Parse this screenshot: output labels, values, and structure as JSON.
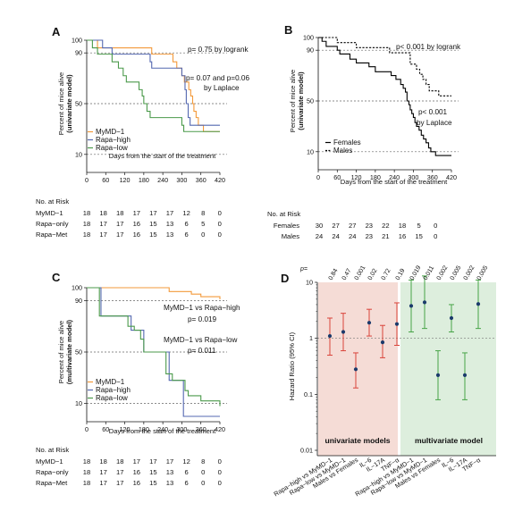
{
  "panels": {
    "A": {
      "letter": "A",
      "ylabel": "Percent of mice alive",
      "ylabel_sub": "(univariate model)",
      "xlabel": "Days from the start of the treatment",
      "annotations": [
        "p= 0.75 by logrank",
        "p= 0.07 and p=0.06",
        "by Laplace"
      ],
      "legend": [
        "MyMD−1",
        "Rapa−high",
        "Rapa−low"
      ],
      "risk_title": "No. at Risk",
      "risk_rows": [
        {
          "label": "MyMD−1",
          "counts": [
            "18",
            "18",
            "18",
            "17",
            "17",
            "17",
            "12",
            "8",
            "0"
          ]
        },
        {
          "label": "Rapa−only",
          "counts": [
            "18",
            "17",
            "17",
            "16",
            "15",
            "13",
            "6",
            "5",
            "0"
          ]
        },
        {
          "label": "Rapa−Met",
          "counts": [
            "18",
            "17",
            "17",
            "16",
            "15",
            "13",
            "6",
            "0",
            "0"
          ]
        }
      ]
    },
    "B": {
      "letter": "B",
      "ylabel": "Percent of mice alive",
      "ylabel_sub": "(univariate model)",
      "xlabel": "Days from the start of the treatment",
      "annotations": [
        "p< 0.001 by logrank",
        "p< 0.001",
        "by Laplace"
      ],
      "legend": [
        "Females",
        "Males"
      ],
      "risk_title": "No. at Risk",
      "risk_rows": [
        {
          "label": "Females",
          "counts": [
            "30",
            "27",
            "27",
            "23",
            "22",
            "18",
            "5",
            "0",
            ""
          ]
        },
        {
          "label": "Males",
          "counts": [
            "24",
            "24",
            "24",
            "23",
            "21",
            "16",
            "15",
            "0",
            ""
          ]
        }
      ]
    },
    "C": {
      "letter": "C",
      "ylabel": "Percent of mice alive",
      "ylabel_sub": "(multivariate model)",
      "xlabel": "Days from the start of the treatment",
      "annotations": [
        "MyMD−1 vs Rapa−high",
        "p= 0.019",
        "MyMD−1 vs Rapa−low",
        "p= 0.011"
      ],
      "legend": [
        "MyMD−1",
        "Rapa−high",
        "Rapa−low"
      ],
      "risk_title": "No. at Risk",
      "risk_rows": [
        {
          "label": "MyMD−1",
          "counts": [
            "18",
            "18",
            "18",
            "17",
            "17",
            "17",
            "12",
            "8",
            "0"
          ]
        },
        {
          "label": "Rapa−only",
          "counts": [
            "18",
            "17",
            "17",
            "16",
            "15",
            "13",
            "6",
            "0",
            "0"
          ]
        },
        {
          "label": "Rapa−Met",
          "counts": [
            "18",
            "17",
            "17",
            "16",
            "15",
            "13",
            "6",
            "0",
            "0"
          ]
        }
      ]
    },
    "D": {
      "letter": "D",
      "ylabel": "Hazard Ratio (95% CI)",
      "p_prefix": "p=",
      "band_labels": [
        "univariate models",
        "multivariate model"
      ]
    }
  },
  "chart_data": [
    {
      "type": "line",
      "panel": "A",
      "subtype": "kaplan-meier",
      "xlim": [
        0,
        420
      ],
      "ylim": [
        0,
        100
      ],
      "xticks": [
        "0",
        "60",
        "120",
        "180",
        "240",
        "300",
        "360",
        "420"
      ],
      "yticks": [
        "10",
        "50",
        "90",
        "100"
      ],
      "ref_lines": [
        10,
        50,
        90
      ],
      "series": [
        {
          "name": "MyMD−1",
          "color": "#f39a3b",
          "x": [
            0,
            18,
            34,
            50,
            120,
            190,
            205,
            225,
            240,
            255,
            272,
            284,
            292,
            300,
            308,
            316,
            322,
            328,
            334,
            338,
            345,
            352,
            360,
            368,
            380,
            400,
            420
          ],
          "y": [
            100,
            100,
            94,
            94,
            94,
            94,
            89,
            89,
            89,
            89,
            83,
            78,
            78,
            72,
            67,
            67,
            61,
            56,
            50,
            44,
            39,
            33,
            33,
            28,
            28,
            28,
            28
          ]
        },
        {
          "name": "Rapa−high",
          "color": "#5468b0",
          "x": [
            0,
            28,
            50,
            80,
            150,
            185,
            200,
            205,
            222,
            245,
            280,
            300,
            310,
            314,
            320,
            326,
            332,
            340,
            350,
            360,
            380,
            400,
            420
          ],
          "y": [
            100,
            100,
            94,
            89,
            89,
            89,
            83,
            78,
            78,
            78,
            78,
            72,
            61,
            50,
            39,
            33,
            33,
            33,
            33,
            33,
            33,
            33,
            33
          ]
        },
        {
          "name": "Rapa−low",
          "color": "#4b9a4b",
          "x": [
            0,
            18,
            34,
            55,
            70,
            80,
            100,
            115,
            125,
            140,
            160,
            165,
            175,
            180,
            190,
            200,
            212,
            225,
            245,
            265,
            292,
            300,
            306,
            312,
            318,
            330,
            360,
            380,
            420
          ],
          "y": [
            100,
            94,
            89,
            89,
            89,
            83,
            78,
            72,
            67,
            67,
            67,
            61,
            56,
            50,
            44,
            39,
            39,
            39,
            39,
            39,
            39,
            33,
            28,
            28,
            28,
            28,
            28,
            28,
            28
          ]
        }
      ]
    },
    {
      "type": "line",
      "panel": "B",
      "subtype": "kaplan-meier",
      "xlim": [
        0,
        420
      ],
      "ylim": [
        0,
        100
      ],
      "xticks": [
        "0",
        "60",
        "120",
        "180",
        "240",
        "300",
        "360",
        "420"
      ],
      "yticks": [
        "10",
        "50",
        "90",
        "100"
      ],
      "ref_lines": [
        10,
        50,
        90
      ],
      "series": [
        {
          "name": "Females",
          "color": "#000000",
          "dash": false,
          "x": [
            0,
            12,
            25,
            35,
            55,
            60,
            68,
            80,
            100,
            120,
            140,
            160,
            180,
            200,
            230,
            245,
            260,
            268,
            275,
            280,
            286,
            290,
            295,
            300,
            305,
            310,
            318,
            325,
            332,
            340,
            348,
            355,
            362,
            370,
            385,
            400,
            420
          ],
          "y": [
            100,
            97,
            93,
            93,
            93,
            90,
            87,
            87,
            83,
            80,
            80,
            77,
            73,
            73,
            70,
            67,
            63,
            60,
            57,
            50,
            47,
            43,
            40,
            37,
            33,
            30,
            27,
            23,
            20,
            17,
            13,
            10,
            10,
            7,
            7,
            7,
            7
          ]
        },
        {
          "name": "Males",
          "color": "#000000",
          "dash": true,
          "x": [
            0,
            30,
            40,
            60,
            80,
            105,
            120,
            150,
            200,
            225,
            240,
            260,
            270,
            280,
            290,
            300,
            310,
            320,
            330,
            340,
            350,
            360,
            370,
            380,
            400,
            420
          ],
          "y": [
            100,
            100,
            100,
            96,
            96,
            96,
            92,
            92,
            92,
            88,
            88,
            88,
            88,
            88,
            79,
            79,
            75,
            71,
            67,
            63,
            58,
            58,
            58,
            54,
            54,
            54
          ]
        }
      ]
    },
    {
      "type": "line",
      "panel": "C",
      "subtype": "kaplan-meier",
      "xlim": [
        0,
        420
      ],
      "ylim": [
        0,
        100
      ],
      "xticks": [
        "0",
        "60",
        "120",
        "180",
        "240",
        "300",
        "360",
        "420"
      ],
      "yticks": [
        "10",
        "50",
        "90",
        "100"
      ],
      "ref_lines": [
        10,
        50,
        90
      ],
      "series": [
        {
          "name": "MyMD−1",
          "color": "#f39a3b",
          "x": [
            0,
            200,
            260,
            300,
            330,
            360,
            380,
            400,
            420
          ],
          "y": [
            100,
            100,
            97,
            97,
            95,
            93,
            93,
            93,
            91
          ]
        },
        {
          "name": "Rapa−high",
          "color": "#5468b0",
          "x": [
            0,
            30,
            45,
            60,
            120,
            140,
            175,
            180,
            200,
            230,
            260,
            290,
            300,
            305,
            310,
            420
          ],
          "y": [
            100,
            100,
            78,
            78,
            78,
            67,
            67,
            50,
            50,
            50,
            28,
            28,
            28,
            0,
            0,
            0
          ]
        },
        {
          "name": "Rapa−low",
          "color": "#4b9a4b",
          "x": [
            0,
            30,
            40,
            60,
            120,
            130,
            150,
            170,
            180,
            200,
            230,
            250,
            270,
            290,
            305,
            310,
            320,
            340,
            360,
            380,
            400,
            420
          ],
          "y": [
            100,
            100,
            78,
            78,
            78,
            70,
            67,
            60,
            50,
            50,
            50,
            33,
            28,
            28,
            28,
            20,
            16,
            16,
            12,
            12,
            12,
            8
          ]
        }
      ]
    },
    {
      "type": "scatter",
      "panel": "D",
      "subtype": "forest-plot",
      "yscale": "log",
      "ylim": [
        0.01,
        10
      ],
      "yticks": [
        "0.01",
        "0.1",
        "1",
        "10"
      ],
      "ref_line": 1,
      "groups": [
        {
          "name": "univariate models",
          "color": "#d9433a",
          "band": "#f5dcd6",
          "categories": [
            "Rapa−high vs MyMD−1",
            "Rapa−low vs MyMD−1",
            "Males vs Females",
            "IL−6",
            "IL−17A",
            "TNF−α"
          ],
          "p_values": [
            "0.84",
            "0.47",
            "0.001",
            "0.02",
            "0.72",
            "0.19"
          ],
          "hr": [
            1.1,
            1.3,
            0.28,
            1.9,
            0.85,
            1.8
          ],
          "lo": [
            0.5,
            0.6,
            0.13,
            1.1,
            0.45,
            0.75
          ],
          "hi": [
            2.3,
            2.8,
            0.55,
            3.3,
            1.7,
            4.3
          ]
        },
        {
          "name": "multivariate model",
          "color": "#47a447",
          "band": "#ddeedd",
          "categories": [
            "Rapa−high vs MyMD−1",
            "Rapa−low vs MyMD−1",
            "Males vs Females",
            "IL−6",
            "IL−17A",
            "TNF−α"
          ],
          "p_values": [
            "0.019",
            "0.011",
            "0.002",
            "0.005",
            "0.002",
            "0.005"
          ],
          "hr": [
            3.8,
            4.4,
            0.22,
            2.3,
            0.22,
            4.1
          ],
          "lo": [
            1.3,
            1.5,
            0.08,
            1.3,
            0.08,
            1.5
          ],
          "hi": [
            11,
            13,
            0.6,
            4.0,
            0.55,
            11
          ]
        }
      ]
    }
  ]
}
